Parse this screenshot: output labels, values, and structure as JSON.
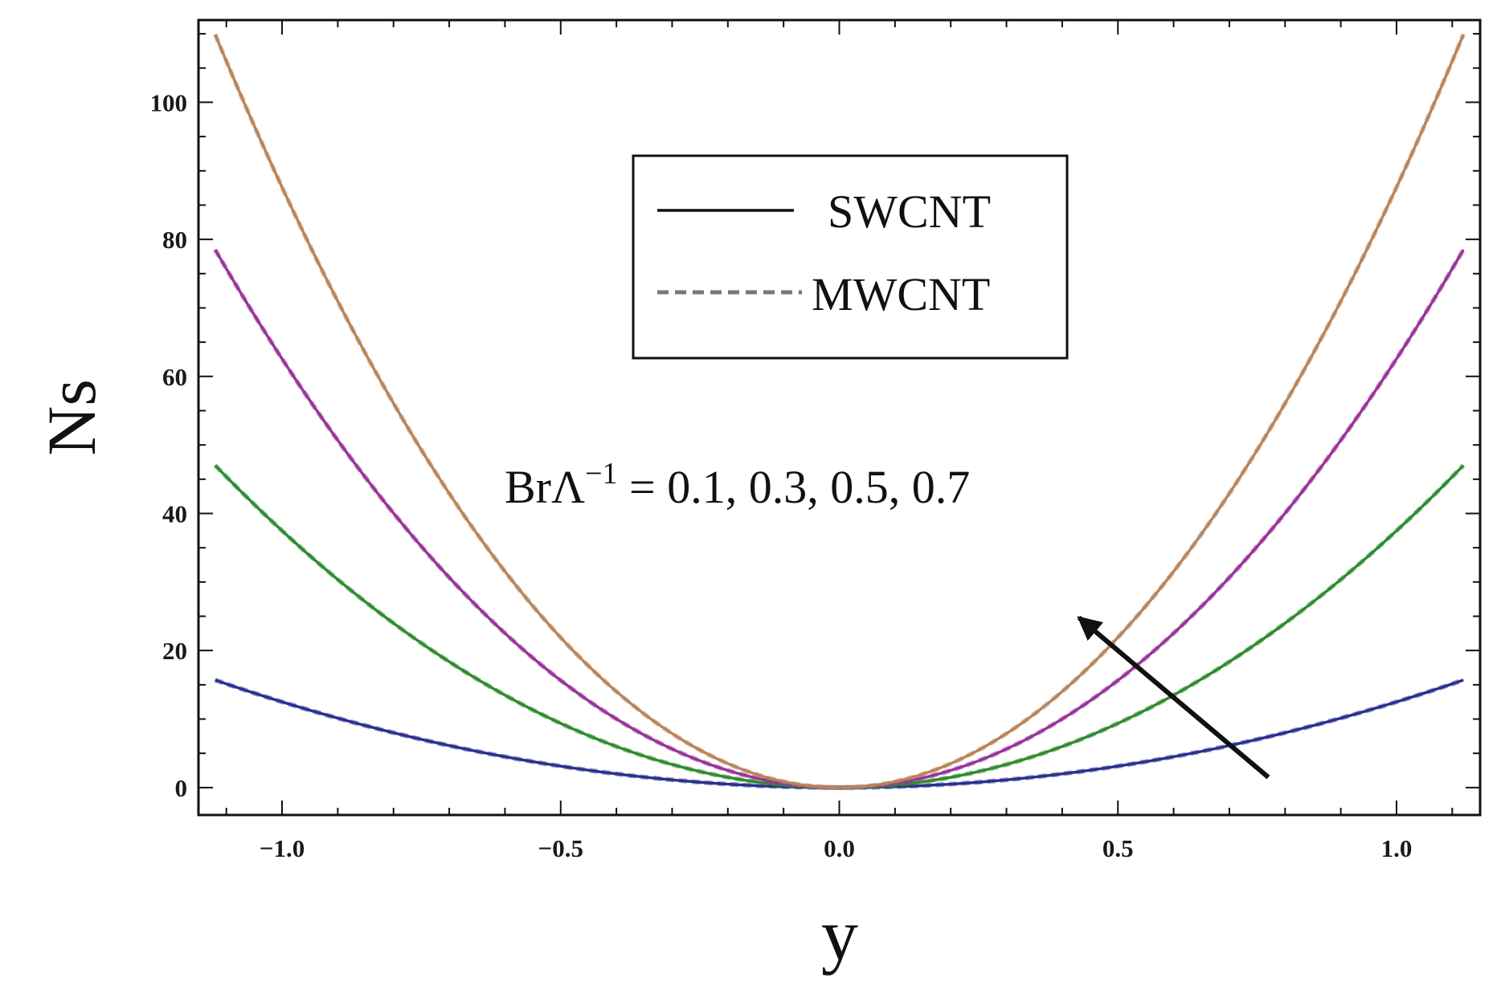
{
  "chart_data": {
    "type": "line",
    "xlabel": "y",
    "ylabel": "Ns",
    "xlim": [
      -1.15,
      1.15
    ],
    "ylim": [
      -4,
      112
    ],
    "x_ticks": [
      -1.0,
      -0.5,
      0.0,
      0.5,
      1.0
    ],
    "x_tick_labels": [
      "−1.0",
      "−0.5",
      "0.0",
      "0.5",
      "1.0"
    ],
    "y_ticks": [
      0,
      20,
      40,
      60,
      80,
      100
    ],
    "y_tick_labels": [
      "0",
      "20",
      "40",
      "60",
      "80",
      "100"
    ],
    "grid": false,
    "legend_position": "top-center",
    "legend": [
      {
        "label": "SWCNT",
        "style": "solid"
      },
      {
        "label": "MWCNT",
        "style": "dashed"
      }
    ],
    "annotation": {
      "base": "BrΛ",
      "superscript": "−1",
      "rest": " = 0.1, 0.3, 0.5, 0.7",
      "arrow_from": [
        0.77,
        1.5
      ],
      "arrow_to": [
        0.43,
        24.8
      ]
    },
    "series": [
      {
        "color": "#2b2f8f",
        "x": [
          -1.12,
          -1.0,
          -0.8,
          -0.6,
          -0.4,
          -0.2,
          0.0,
          0.2,
          0.4,
          0.6,
          0.8,
          1.0,
          1.12
        ],
        "y": [
          15.7,
          12.5,
          8.0,
          4.5,
          2.0,
          0.5,
          0.0,
          0.5,
          2.0,
          4.5,
          8.0,
          12.5,
          15.7
        ]
      },
      {
        "color": "#2e8b2e",
        "x": [
          -1.12,
          -1.0,
          -0.8,
          -0.6,
          -0.4,
          -0.2,
          0.0,
          0.2,
          0.4,
          0.6,
          0.8,
          1.0,
          1.12
        ],
        "y": [
          47.0,
          37.5,
          24.0,
          13.5,
          6.0,
          1.5,
          0.0,
          1.5,
          6.0,
          13.5,
          24.0,
          37.5,
          47.0
        ]
      },
      {
        "color": "#983399",
        "x": [
          -1.12,
          -1.0,
          -0.8,
          -0.6,
          -0.4,
          -0.2,
          0.0,
          0.2,
          0.4,
          0.6,
          0.8,
          1.0,
          1.12
        ],
        "y": [
          78.5,
          62.6,
          40.0,
          22.5,
          10.0,
          2.5,
          0.0,
          2.5,
          10.0,
          22.5,
          40.0,
          62.6,
          78.5
        ]
      },
      {
        "color": "#b8845a",
        "x": [
          -1.12,
          -1.0,
          -0.8,
          -0.6,
          -0.4,
          -0.2,
          0.0,
          0.2,
          0.4,
          0.6,
          0.8,
          1.0,
          1.12
        ],
        "y": [
          109.9,
          87.6,
          56.1,
          31.5,
          14.0,
          3.5,
          0.0,
          3.5,
          14.0,
          31.5,
          56.1,
          87.6,
          109.9
        ]
      }
    ]
  }
}
